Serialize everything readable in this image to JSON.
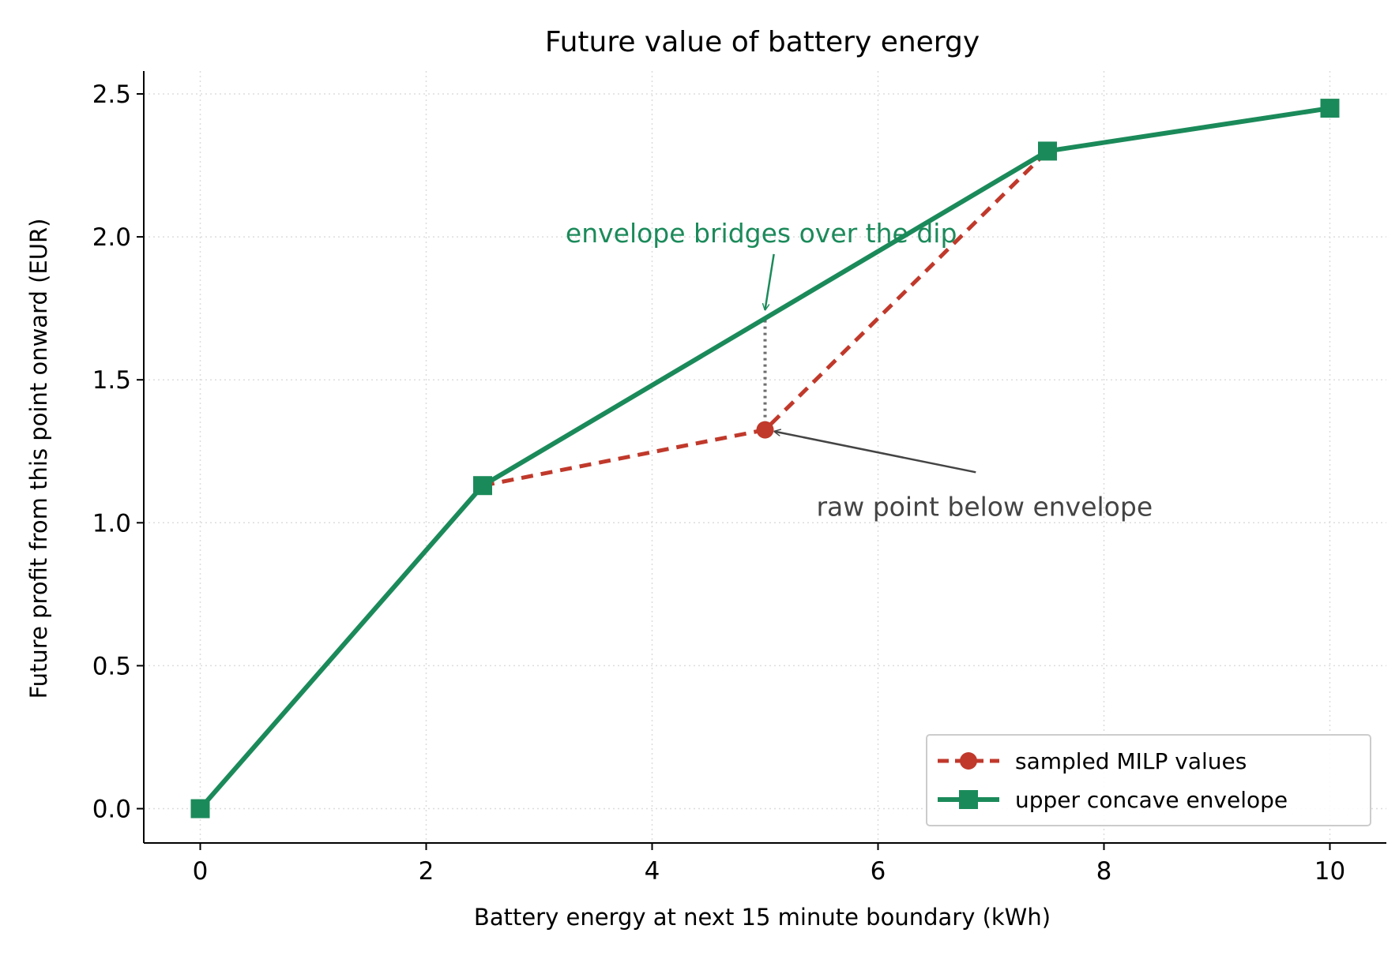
{
  "chart_data": {
    "type": "line",
    "title": "Future value of battery energy",
    "xlabel": "Battery energy at next 15 minute boundary (kWh)",
    "ylabel": "Future profit from this point onward (EUR)",
    "xlim": [
      -0.5,
      10.5
    ],
    "ylim": [
      -0.12,
      2.58
    ],
    "xticks": [
      0,
      2,
      4,
      6,
      8,
      10
    ],
    "xtick_labels": [
      "0",
      "2",
      "4",
      "6",
      "8",
      "10"
    ],
    "yticks": [
      0.0,
      0.5,
      1.0,
      1.5,
      2.0,
      2.5
    ],
    "ytick_labels": [
      "0.0",
      "0.5",
      "1.0",
      "1.5",
      "2.0",
      "2.5"
    ],
    "grid": true,
    "legend_position": "lower-right",
    "series": [
      {
        "name": "sampled MILP values",
        "style": "dashed",
        "marker": "circle",
        "color": "#c0392b",
        "x": [
          2.5,
          5.0,
          7.5
        ],
        "y": [
          1.13,
          1.325,
          2.3
        ]
      },
      {
        "name": "upper concave envelope",
        "style": "solid",
        "marker": "square",
        "color": "#1b8a5a",
        "x": [
          0,
          2.5,
          7.5,
          10
        ],
        "y": [
          0.0,
          1.13,
          2.3,
          2.45
        ]
      }
    ],
    "annotations": [
      {
        "text": "envelope bridges over the dip",
        "color": "#1b8a5a",
        "arrow_to": {
          "x": 5.0,
          "y": 1.7175
        },
        "text_pos": {
          "x": 5.05,
          "y": 2.05
        }
      },
      {
        "text": "raw point below envelope",
        "color": "#444444",
        "arrow_to": {
          "x": 5.0,
          "y": 1.325
        },
        "text_pos": {
          "x": 7.6,
          "y": 1.08
        }
      }
    ],
    "gap_marker": {
      "x": 5.0,
      "y_from": 1.325,
      "y_to": 1.7175,
      "color": "#6e6e6e"
    }
  }
}
